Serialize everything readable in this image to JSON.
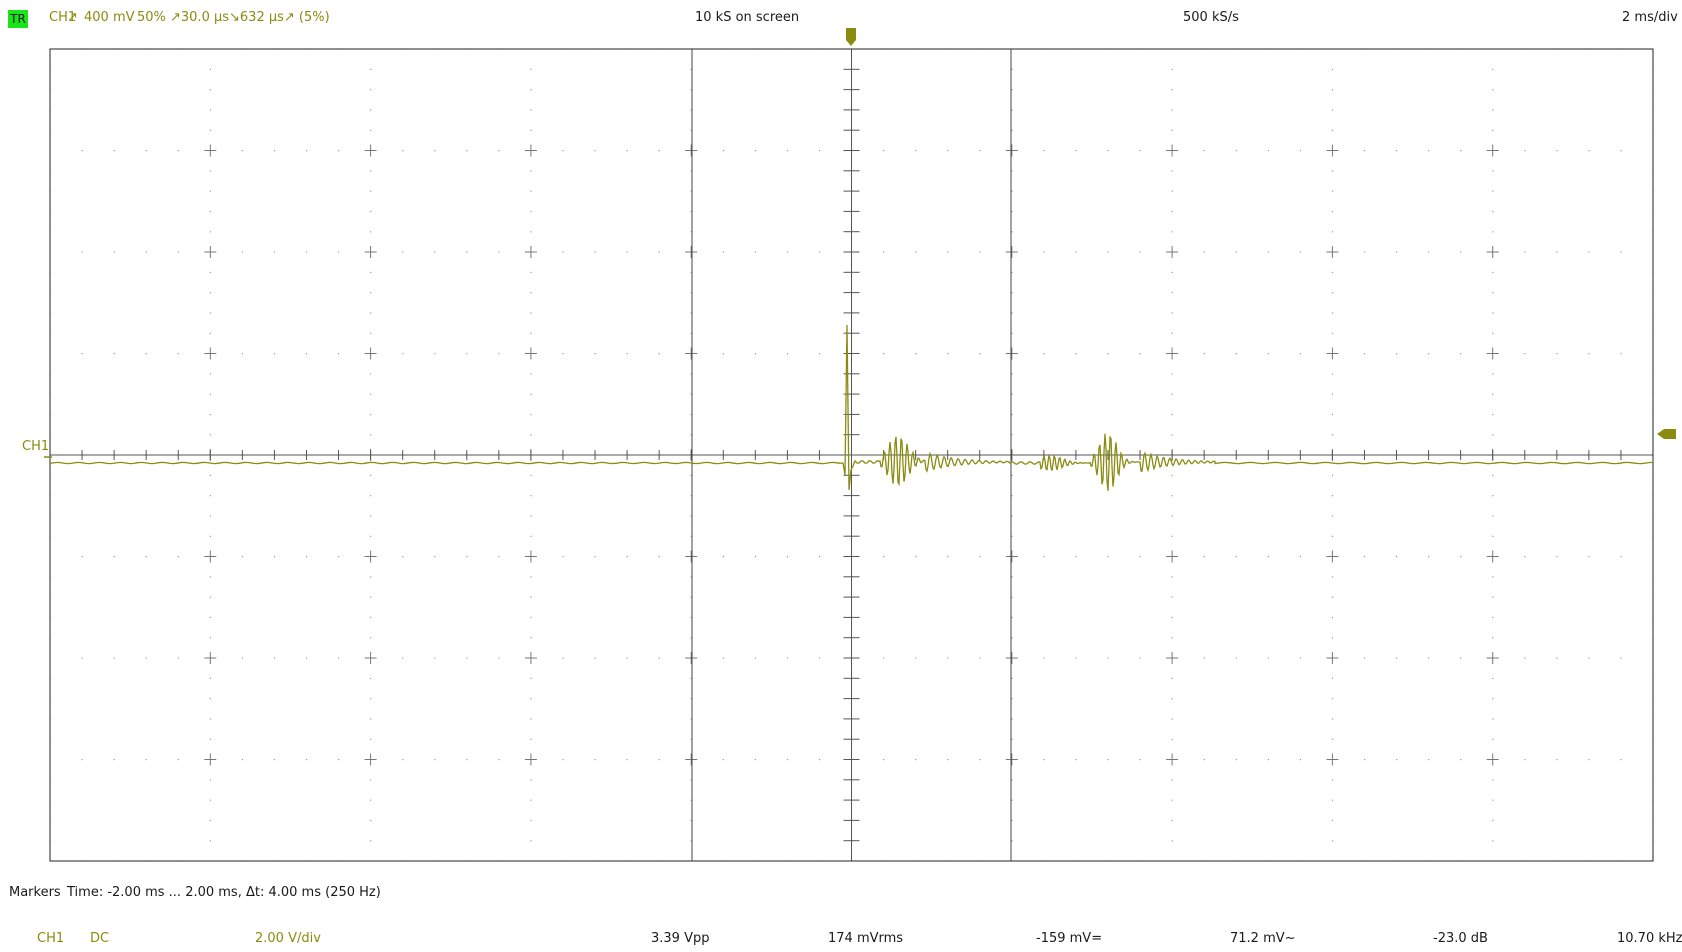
{
  "header": {
    "trigger_badge": "TR",
    "trigger_channel": "CH1",
    "trigger_edge_icon": "rising-edge-icon",
    "trigger_edge_glyph": "↗",
    "trigger_level": "400 mV",
    "trigger_position": "50%",
    "trigger_pulse": "↗30.0 µs↘632 µs↗ (5%)",
    "samples_on_screen": "10 kS on screen",
    "sample_rate": "500 kS/s",
    "timebase": "2 ms/div"
  },
  "scope": {
    "channel_label": "CH1",
    "trace_color": "#8a8c10",
    "grid_color": "#555555",
    "trigger_position_icon": "trigger-position-marker-icon",
    "trigger_level_icon": "trigger-level-marker-icon",
    "markers_time_ms": [
      -2.0,
      2.0
    ]
  },
  "markers": {
    "label": "Markers",
    "text": "Time: -2.00 ms ... 2.00 ms,  Δt: 4.00 ms (250 Hz)"
  },
  "measurements": {
    "channel": "CH1",
    "coupling": "DC",
    "vdiv": "2.00 V/div",
    "vpp": "3.39 Vpp",
    "vrms": "174 mVrms",
    "vdc": "-159 mV=",
    "vac": "71.2 mV~",
    "db": "-23.0 dB",
    "freq": "10.70 kHz"
  }
}
